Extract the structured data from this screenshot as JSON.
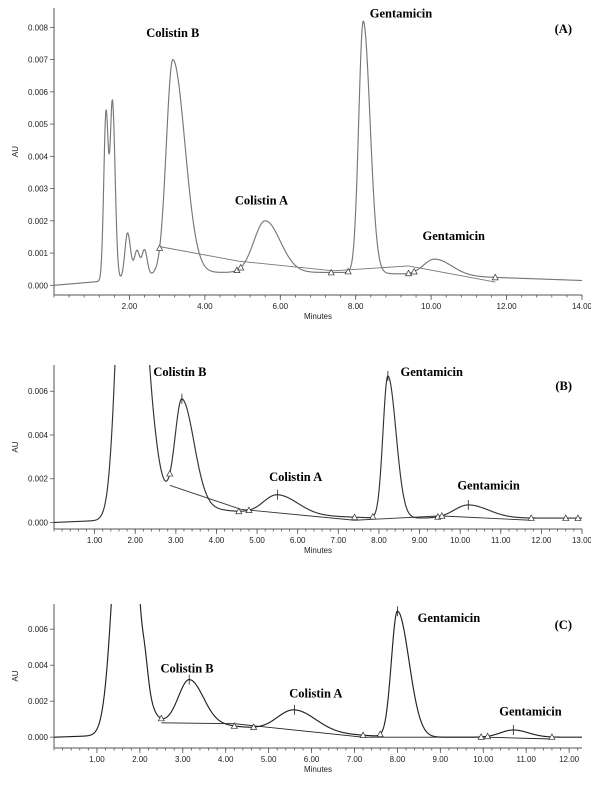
{
  "chart_data": [
    {
      "type": "line",
      "panel_label": "(A)",
      "xlabel": "Minutes",
      "ylabel": "AU",
      "xlim": [
        0,
        14
      ],
      "ylim": [
        -0.0003,
        0.0086
      ],
      "xticks": [
        2,
        4,
        6,
        8,
        10,
        12,
        14
      ],
      "xtick_labels": [
        "2.00",
        "4.00",
        "6.00",
        "8.00",
        "10.00",
        "12.00",
        "14.00"
      ],
      "yticks": [
        0,
        0.001,
        0.002,
        0.003,
        0.004,
        0.005,
        0.006,
        0.007,
        0.008
      ],
      "ytick_labels": [
        "0.000",
        "0.001",
        "0.002",
        "0.003",
        "0.004",
        "0.005",
        "0.006",
        "0.007",
        "0.008"
      ],
      "trace_color": "#777777",
      "baseline": 0.0,
      "drift": [
        [
          0,
          0.0
        ],
        [
          1.5,
          0.00015
        ],
        [
          3,
          0.0004
        ],
        [
          8,
          0.0004
        ],
        [
          14,
          0.00015
        ]
      ],
      "peaks": [
        {
          "t": 1.38,
          "h": 0.0052,
          "wl": 0.06,
          "wr": 0.06
        },
        {
          "t": 1.55,
          "h": 0.0055,
          "wl": 0.06,
          "wr": 0.07
        },
        {
          "t": 1.95,
          "h": 0.0014,
          "wl": 0.07,
          "wr": 0.08
        },
        {
          "t": 2.2,
          "h": 0.0008,
          "wl": 0.07,
          "wr": 0.07
        },
        {
          "t": 2.4,
          "h": 0.0008,
          "wl": 0.07,
          "wr": 0.07
        },
        {
          "t": 3.15,
          "h": 0.0066,
          "wl": 0.17,
          "wr": 0.32
        },
        {
          "t": 5.6,
          "h": 0.0016,
          "wl": 0.3,
          "wr": 0.4
        },
        {
          "t": 8.2,
          "h": 0.0078,
          "wl": 0.12,
          "wr": 0.18
        },
        {
          "t": 10.1,
          "h": 0.0005,
          "wl": 0.3,
          "wr": 0.45
        }
      ],
      "integration_baseline": [
        {
          "x": [
            2.8,
            4.9
          ],
          "y": [
            0.0012,
            0.00075
          ]
        },
        {
          "x": [
            4.9,
            7.4
          ],
          "y": [
            0.00075,
            0.00045
          ]
        },
        {
          "x": [
            7.4,
            9.4
          ],
          "y": [
            0.00045,
            0.0006
          ]
        },
        {
          "x": [
            9.4,
            11.7
          ],
          "y": [
            0.0006,
            0.0001
          ]
        }
      ],
      "markers": [
        2.8,
        4.85,
        4.95,
        7.35,
        7.8,
        9.4,
        9.55,
        11.7
      ],
      "apex_ticks": [],
      "annotations": [
        {
          "text": "Colistin B",
          "x": 3.15,
          "y": 0.0077
        },
        {
          "text": "Colistin A",
          "x": 5.5,
          "y": 0.0025
        },
        {
          "text": "Gentamicin",
          "x": 9.2,
          "y": 0.0083
        },
        {
          "text": "Gentamicin",
          "x": 10.6,
          "y": 0.0014
        }
      ]
    },
    {
      "type": "line",
      "panel_label": "(B)",
      "xlabel": "Minutes",
      "ylabel": "AU",
      "xlim": [
        0,
        13
      ],
      "ylim": [
        -0.0003,
        0.0072
      ],
      "xticks": [
        1,
        2,
        3,
        4,
        5,
        6,
        7,
        8,
        9,
        10,
        11,
        12,
        13
      ],
      "xtick_labels": [
        "1.00",
        "2.00",
        "3.00",
        "4.00",
        "5.00",
        "6.00",
        "7.00",
        "8.00",
        "9.00",
        "10.00",
        "11.00",
        "12.00",
        "13.00"
      ],
      "yticks": [
        0,
        0.002,
        0.004,
        0.006
      ],
      "ytick_labels": [
        "0.000",
        "0.002",
        "0.004",
        "0.006"
      ],
      "trace_color": "#333333",
      "baseline": 0.0,
      "drift": [
        [
          0,
          0.0
        ],
        [
          1.3,
          0.0001
        ],
        [
          2.5,
          0.0011
        ],
        [
          3.5,
          0.0007
        ],
        [
          5,
          0.0004
        ],
        [
          8,
          0.0002
        ],
        [
          13,
          0.0002
        ]
      ],
      "peaks": [
        {
          "t": 1.82,
          "h": 0.02,
          "wl": 0.22,
          "wr": 0.35
        },
        {
          "t": 3.15,
          "h": 0.0048,
          "wl": 0.17,
          "wr": 0.3
        },
        {
          "t": 5.5,
          "h": 0.0009,
          "wl": 0.35,
          "wr": 0.5
        },
        {
          "t": 8.22,
          "h": 0.0065,
          "wl": 0.12,
          "wr": 0.2
        },
        {
          "t": 10.2,
          "h": 0.0006,
          "wl": 0.35,
          "wr": 0.5
        }
      ],
      "integration_baseline": [
        {
          "x": [
            2.85,
            4.6
          ],
          "y": [
            0.0017,
            0.0006
          ]
        },
        {
          "x": [
            4.6,
            7.4
          ],
          "y": [
            0.0006,
            0.0001
          ]
        },
        {
          "x": [
            7.4,
            9.5
          ],
          "y": [
            0.0001,
            0.0003
          ]
        },
        {
          "x": [
            9.5,
            11.75
          ],
          "y": [
            0.0003,
            0.0001
          ]
        }
      ],
      "markers": [
        2.85,
        4.55,
        4.8,
        7.4,
        7.85,
        9.45,
        9.55,
        11.75,
        12.6,
        12.9
      ],
      "apex_ticks": [
        3.15,
        5.5,
        8.22,
        10.2
      ],
      "annotations": [
        {
          "text": "Colistin B",
          "x": 3.1,
          "y": 0.0067
        },
        {
          "text": "Colistin A",
          "x": 5.95,
          "y": 0.0019
        },
        {
          "text": "Gentamicin",
          "x": 9.3,
          "y": 0.0067
        },
        {
          "text": "Gentamicin",
          "x": 10.7,
          "y": 0.0015
        }
      ]
    },
    {
      "type": "line",
      "panel_label": "(C)",
      "xlabel": "Minutes",
      "ylabel": "AU",
      "xlim": [
        0,
        12.3
      ],
      "ylim": [
        -0.0006,
        0.0074
      ],
      "xticks": [
        1,
        2,
        3,
        4,
        5,
        6,
        7,
        8,
        9,
        10,
        11,
        12
      ],
      "xtick_labels": [
        "1.00",
        "2.00",
        "3.00",
        "4.00",
        "5.00",
        "6.00",
        "7.00",
        "8.00",
        "9.00",
        "10.00",
        "11.00",
        "12.00"
      ],
      "yticks": [
        0,
        0.002,
        0.004,
        0.006
      ],
      "ytick_labels": [
        "0.000",
        "0.002",
        "0.004",
        "0.006"
      ],
      "trace_color": "#222222",
      "baseline": 0.0,
      "drift": [
        [
          0,
          0.0
        ],
        [
          1.2,
          0.0001
        ],
        [
          2.2,
          0.0008
        ],
        [
          3.5,
          0.0008
        ],
        [
          5,
          0.0004
        ],
        [
          8,
          0.0
        ],
        [
          12.3,
          0.0
        ]
      ],
      "peaks": [
        {
          "t": 1.6,
          "h": 0.015,
          "wl": 0.22,
          "wr": 0.3
        },
        {
          "t": 1.92,
          "h": 0.0015,
          "wl": 0.06,
          "wr": 0.07
        },
        {
          "t": 2.12,
          "h": 0.0009,
          "wl": 0.06,
          "wr": 0.07
        },
        {
          "t": 3.15,
          "h": 0.0024,
          "wl": 0.25,
          "wr": 0.32
        },
        {
          "t": 5.6,
          "h": 0.0012,
          "wl": 0.4,
          "wr": 0.5
        },
        {
          "t": 8.0,
          "h": 0.007,
          "wl": 0.14,
          "wr": 0.27
        },
        {
          "t": 10.7,
          "h": 0.0004,
          "wl": 0.3,
          "wr": 0.35
        }
      ],
      "integration_baseline": [
        {
          "x": [
            2.5,
            4.2
          ],
          "y": [
            0.0008,
            0.00075
          ]
        },
        {
          "x": [
            4.2,
            7.2
          ],
          "y": [
            0.00075,
            0.0
          ]
        },
        {
          "x": [
            7.2,
            10.1
          ],
          "y": [
            0.0,
            0.0
          ]
        },
        {
          "x": [
            10.1,
            11.6
          ],
          "y": [
            0.0,
            -0.0001
          ]
        }
      ],
      "markers": [
        2.5,
        4.2,
        4.65,
        7.2,
        7.6,
        9.95,
        10.1,
        11.6
      ],
      "apex_ticks": [
        3.15,
        5.6,
        8.0,
        10.7
      ],
      "annotations": [
        {
          "text": "Colistin B",
          "x": 3.1,
          "y": 0.0036
        },
        {
          "text": "Colistin A",
          "x": 6.1,
          "y": 0.0022
        },
        {
          "text": "Gentamicin",
          "x": 9.2,
          "y": 0.0064
        },
        {
          "text": "Gentamicin",
          "x": 11.1,
          "y": 0.0012
        }
      ]
    }
  ]
}
